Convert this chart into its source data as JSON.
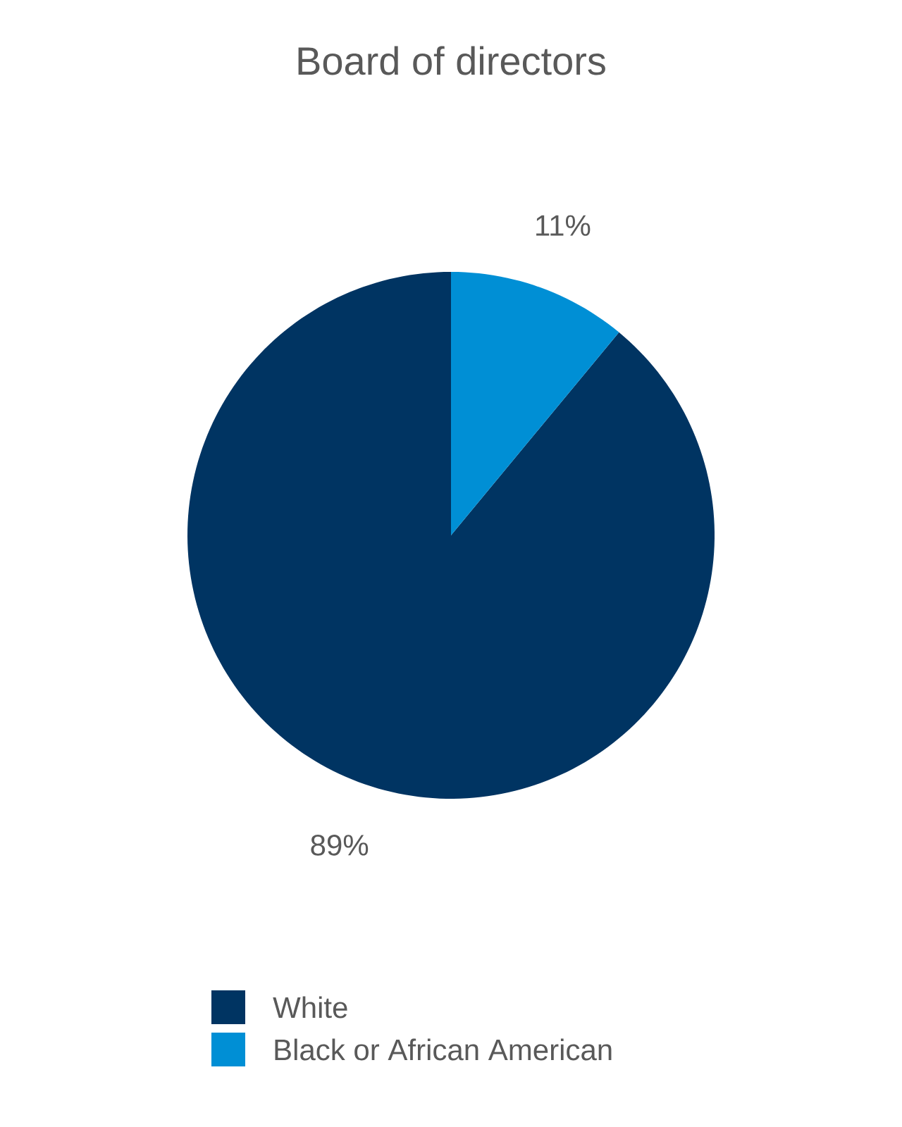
{
  "chart_data": {
    "type": "pie",
    "title": "Board of directors",
    "categories": [
      "White",
      "Black or African American"
    ],
    "values": [
      89,
      11
    ],
    "colors": [
      "#003462",
      "#008fd5"
    ],
    "value_labels": [
      "89%",
      "11%"
    ],
    "legend": "bottom"
  }
}
